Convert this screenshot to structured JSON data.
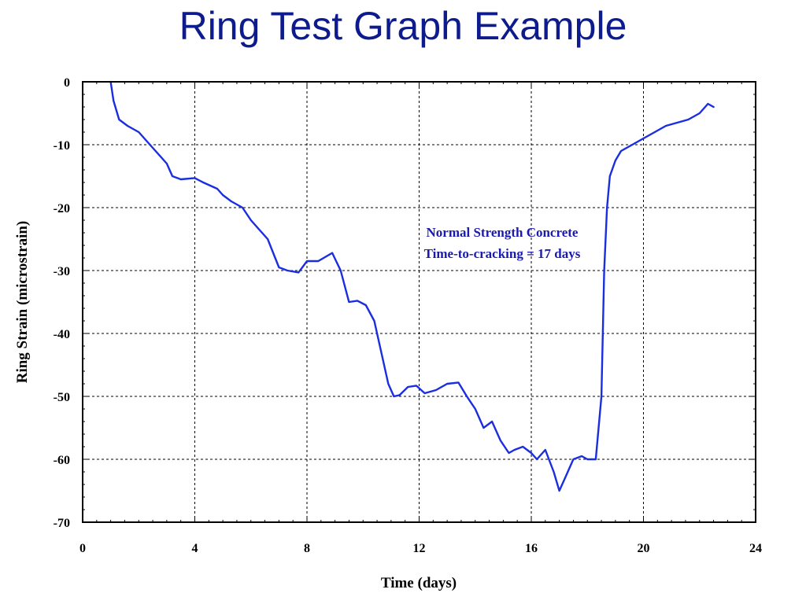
{
  "slide": {
    "title": "Ring Test Graph Example"
  },
  "chart_data": {
    "type": "line",
    "title": "Ring Test Graph Example",
    "xlabel": "Time (days)",
    "ylabel": "Ring Strain (microstrain)",
    "xlim": [
      0,
      24
    ],
    "ylim": [
      -70,
      0
    ],
    "xticks": [
      0,
      4,
      8,
      12,
      16,
      20,
      24
    ],
    "yticks": [
      0,
      -10,
      -20,
      -30,
      -40,
      -50,
      -60,
      -70
    ],
    "grid": true,
    "grid_style": "dashed",
    "line_color": "#1a2ee0",
    "annotations": [
      "Normal Strength Concrete",
      "Time-to-cracking = 17 days"
    ],
    "series": [
      {
        "x": [
          1.0,
          1.1,
          1.3,
          1.6,
          2.0,
          2.4,
          2.8,
          3.0,
          3.2,
          3.5,
          4.0,
          4.3,
          4.8,
          5.0,
          5.3,
          5.7,
          6.0,
          6.3,
          6.6,
          7.0,
          7.3,
          7.7,
          8.0,
          8.4,
          8.9,
          9.2,
          9.5,
          9.8,
          10.1,
          10.4,
          10.7,
          10.9,
          11.1,
          11.3,
          11.6,
          11.9,
          12.2,
          12.6,
          13.0,
          13.4,
          13.7,
          14.0,
          14.3,
          14.6,
          14.9,
          15.2,
          15.4,
          15.7,
          16.0,
          16.2,
          16.5,
          16.8,
          17.0,
          17.2,
          17.5,
          17.8,
          18.0,
          18.3,
          18.5,
          18.6,
          18.7,
          18.8,
          19.0,
          19.2,
          19.6,
          20.0,
          20.4,
          20.8,
          21.2,
          21.6,
          22.0,
          22.3,
          22.5
        ],
        "y": [
          0,
          -3,
          -6,
          -7,
          -8,
          -10,
          -12,
          -13,
          -15,
          -15.5,
          -15.3,
          -16,
          -17,
          -18,
          -19,
          -20,
          -22,
          -23.5,
          -25,
          -29.5,
          -30,
          -30.3,
          -28.5,
          -28.5,
          -27.2,
          -30,
          -35,
          -34.8,
          -35.5,
          -38,
          -44,
          -48,
          -50,
          -49.8,
          -48.5,
          -48.3,
          -49.5,
          -49,
          -48,
          -47.8,
          -50,
          -52,
          -55,
          -54,
          -57,
          -59,
          -58.5,
          -58,
          -59,
          -60,
          -58.5,
          -62,
          -65,
          -63,
          -60,
          -59.5,
          -60,
          -60,
          -50,
          -30,
          -20,
          -15,
          -12.5,
          -11,
          -10,
          -9,
          -8,
          -7,
          -6.5,
          -6,
          -5,
          -3.5,
          -4
        ]
      }
    ]
  }
}
